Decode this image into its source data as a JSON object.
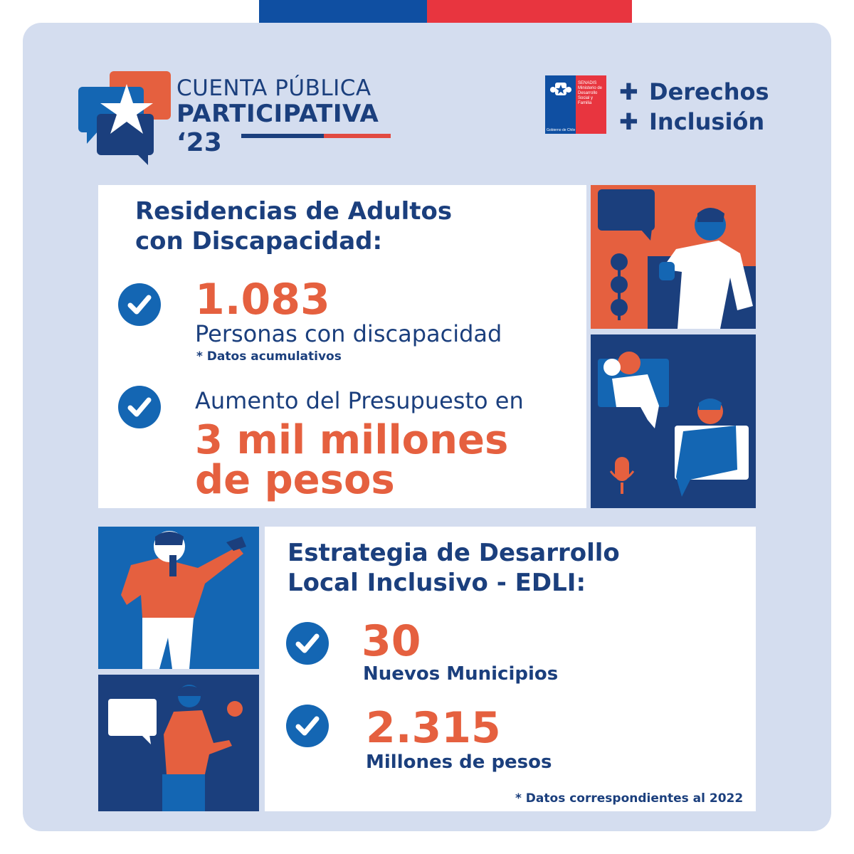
{
  "logo": {
    "line1": "CUENTA PÚBLICA",
    "line2": "PARTICIPATIVA",
    "line3": "‘23"
  },
  "government": {
    "institution": "SENADIS Ministerio de Desarrollo Social y Familia",
    "footer": "Gobierno de Chile"
  },
  "slogan": {
    "line1": "Derechos",
    "line2": "Inclusión"
  },
  "section1": {
    "title_line1": "Residencias de Adultos",
    "title_line2": "con Discapacidad:",
    "item1": {
      "value": "1.083",
      "label": "Personas con discapacidad",
      "note": "* Datos acumulativos"
    },
    "item2": {
      "label": "Aumento del Presupuesto en",
      "value_line1": "3 mil millones",
      "value_line2": "de pesos"
    }
  },
  "section2": {
    "title_line1": "Estrategia de Desarrollo",
    "title_line2": "Local Inclusivo - EDLI:",
    "item1": {
      "value": "30",
      "label": "Nuevos Municipios"
    },
    "item2": {
      "value": "2.315",
      "label": "Millones de pesos"
    },
    "footnote": "* Datos correspondientes al 2022"
  },
  "colors": {
    "navy": "#1b3f7d",
    "blue": "#1466b3",
    "orange": "#e5603f",
    "red": "#e8353f",
    "frame": "#d4ddef"
  }
}
